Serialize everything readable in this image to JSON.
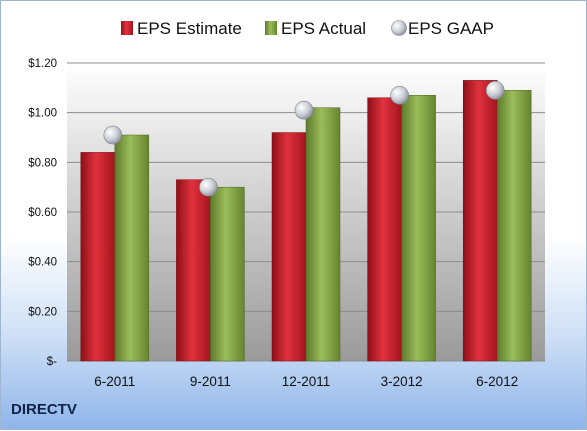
{
  "company": "DIRECTV",
  "colors": {
    "estimate": "#cc1f2c",
    "actual": "#84a646",
    "gaap": "#c8ccd4",
    "plot_top": "#ffffff",
    "plot_bottom": "#9a9a9a"
  },
  "chart_data": {
    "type": "bar",
    "categories": [
      "6-2011",
      "9-2011",
      "12-2011",
      "3-2012",
      "6-2012"
    ],
    "series": [
      {
        "name": "EPS Estimate",
        "kind": "bar",
        "values": [
          0.84,
          0.73,
          0.92,
          1.06,
          1.13
        ]
      },
      {
        "name": "EPS Actual",
        "kind": "bar",
        "values": [
          0.91,
          0.7,
          1.02,
          1.07,
          1.09
        ]
      },
      {
        "name": "EPS GAAP",
        "kind": "marker",
        "values": [
          0.91,
          0.7,
          1.01,
          1.07,
          1.09
        ]
      }
    ],
    "y_ticks": [
      {
        "value": 0,
        "label": "$-"
      },
      {
        "value": 0.2,
        "label": "$0.20"
      },
      {
        "value": 0.4,
        "label": "$0.40"
      },
      {
        "value": 0.6,
        "label": "$0.60"
      },
      {
        "value": 0.8,
        "label": "$0.80"
      },
      {
        "value": 1.0,
        "label": "$1.00"
      },
      {
        "value": 1.2,
        "label": "$1.20"
      }
    ],
    "ylim": [
      0,
      1.2
    ],
    "grid": true,
    "legend_position": "top"
  }
}
